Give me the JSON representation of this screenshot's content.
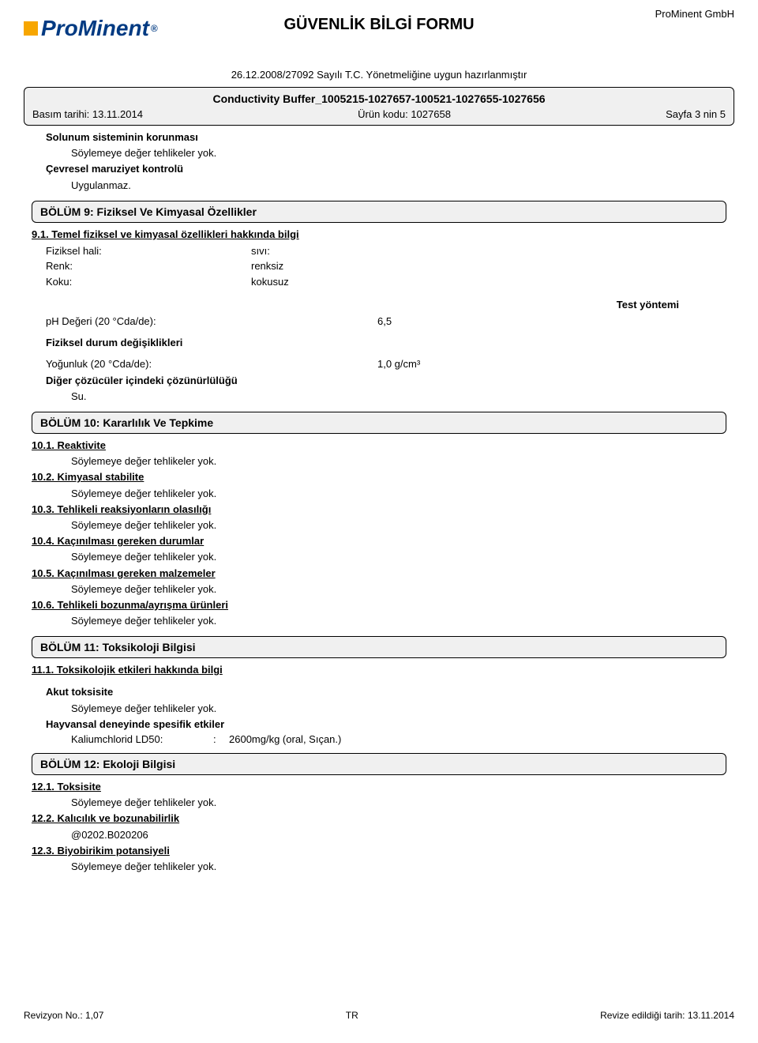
{
  "colors": {
    "logo_blue": "#003a82",
    "logo_orange": "#f7a600",
    "box_bg": "#f0f0f0",
    "border": "#000000",
    "text": "#000000",
    "background": "#ffffff"
  },
  "typography": {
    "body_size": 13,
    "title_size": 20,
    "section_size": 14,
    "logo_size": 28,
    "font_family": "Arial"
  },
  "header": {
    "logo_text_a": "Pro",
    "logo_text_b": "Minent",
    "logo_reg": "®",
    "title": "GÜVENLİK BİLGİ FORMU",
    "company": "ProMinent GmbH",
    "regulation": "26.12.2008/27092 Sayılı T.C. Yönetmeliğine uygun hazırlanmıştır"
  },
  "product": {
    "name": "Conductivity Buffer_1005215-1027657-100521-1027655-1027656",
    "issue_date_label": "Basım tarihi: 13.11.2014",
    "product_code": "Ürün kodu: 1027658",
    "page": "Sayfa 3 nin 5"
  },
  "body": {
    "resp_protect": "Solunum sisteminin korunması",
    "no_hazard": "Söylemeye değer tehlikeler yok.",
    "env_control": "Çevresel maruziyet kontrolü",
    "not_applicable": "Uygulanmaz."
  },
  "sect9": {
    "title": "BÖLÜM 9: Fiziksel Ve Kimyasal Özellikler",
    "s91": "9.1. Temel fiziksel ve kimyasal özellikleri hakkında bilgi",
    "physical_state_label": "Fiziksel hali:",
    "physical_state_value": "sıvı:",
    "color_label": "Renk:",
    "color_value": "renksiz",
    "odor_label": "Koku:",
    "odor_value": "kokusuz",
    "test_method": "Test yöntemi",
    "ph_label": "pH Değeri (20 °Cda/de):",
    "ph_value": "6,5",
    "phys_changes": "Fiziksel durum değişiklikleri",
    "density_label": "Yoğunluk (20 °Cda/de):",
    "density_value": "1,0 g/cm³",
    "solubility": "Diğer çözücüler içindeki çözünürlülüğü",
    "water": "Su."
  },
  "sect10": {
    "title": "BÖLÜM 10: Kararlılık Ve Tepkime",
    "s101": "10.1. Reaktivite",
    "s102": "10.2. Kimyasal stabilite",
    "s103": "10.3. Tehlikeli reaksiyonların olasılığı",
    "s104": "10.4. Kaçınılması gereken durumlar",
    "s105": "10.5. Kaçınılması gereken malzemeler",
    "s106": "10.6. Tehlikeli bozunma/ayrışma ürünleri"
  },
  "sect11": {
    "title": "BÖLÜM 11: Toksikoloji Bilgisi",
    "s111": "11.1. Toksikolojik etkileri hakkında bilgi",
    "acute": "Akut toksisite",
    "animal": "Hayvansal deneyinde spesifik etkiler",
    "ld50_label": "Kaliumchlorid  LD50:",
    "ld50_sep": ":",
    "ld50_value": "2600mg/kg (oral, Sıçan.)"
  },
  "sect12": {
    "title": "BÖLÜM 12: Ekoloji Bilgisi",
    "s121": "12.1. Toksisite",
    "s122": "12.2. Kalıcılık ve bozunabilirlik",
    "code": "@0202.B020206",
    "s123": "12.3. Biyobirikim potansiyeli"
  },
  "footer": {
    "revision": "Revizyon No.: 1,07",
    "country": "TR",
    "revised": "Revize edildiği tarih: 13.11.2014"
  }
}
